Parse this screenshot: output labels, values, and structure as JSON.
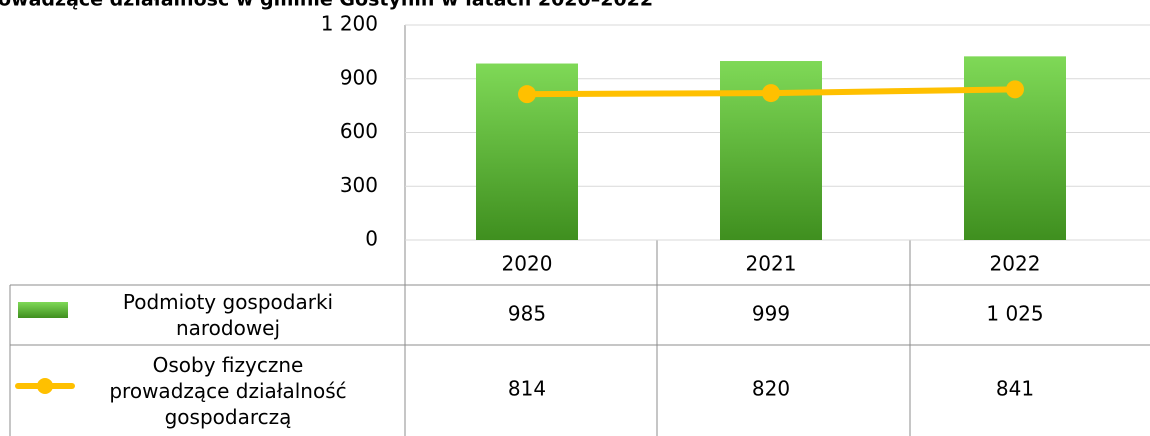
{
  "chart_data": {
    "type": "bar-line-table",
    "title": "owadzące działalność w gminie Gostynin w latach 2020–2022",
    "categories": [
      "2020",
      "2021",
      "2022"
    ],
    "series": [
      {
        "name": "Podmioty gospodarki narodowej",
        "type": "bar",
        "color": "#4fa82a",
        "values": [
          985,
          999,
          1025
        ],
        "value_labels": [
          "985",
          "999",
          "1 025"
        ]
      },
      {
        "name": "Osoby fizyczne prowadzące działalność gospodarczą",
        "type": "line",
        "color": "#ffc000",
        "values": [
          814,
          820,
          841
        ]
      }
    ],
    "ylim": [
      0,
      1200
    ],
    "yticks": [
      0,
      300,
      600,
      900,
      {
        "value": 1200,
        "label": "1 200"
      }
    ],
    "grid": true
  }
}
